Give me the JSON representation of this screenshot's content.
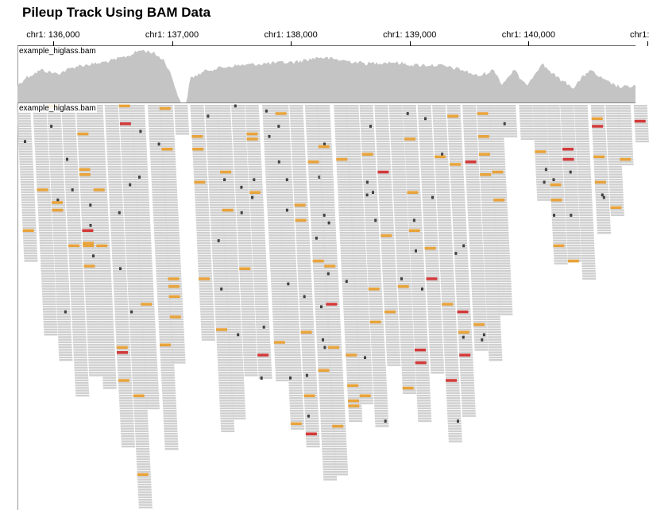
{
  "page": {
    "title": "Pileup Track Using BAM Data"
  },
  "ruler": {
    "chromosome": "chr1",
    "ticks": [
      {
        "label": "chr1: 136,000",
        "position": 136000
      },
      {
        "label": "chr1: 137,000",
        "position": 137000
      },
      {
        "label": "chr1: 138,000",
        "position": 138000
      },
      {
        "label": "chr1: 139,000",
        "position": 139000
      },
      {
        "label": "chr1: 140,000",
        "position": 140000
      },
      {
        "label": "chr1:",
        "position": 141000
      }
    ],
    "visible_range": [
      135700,
      140900
    ]
  },
  "tracks": {
    "coverage": {
      "label": "example_higlass.bam",
      "color": "#c4c4c4"
    },
    "pileup": {
      "label": "example_higlass.bam",
      "read_color": "#cfcfcf",
      "mismatch_colors": {
        "orange": "#e8a33a",
        "red": "#d33a3a",
        "dark": "#3f3f3f"
      }
    }
  }
}
